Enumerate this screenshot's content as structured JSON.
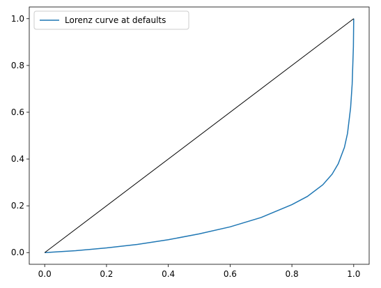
{
  "chart_data": {
    "type": "line",
    "series": [
      {
        "name": "Lorenz curve at defaults",
        "color": "#1f77b4",
        "x": [
          0,
          0.1,
          0.2,
          0.3,
          0.4,
          0.5,
          0.6,
          0.7,
          0.8,
          0.85,
          0.9,
          0.93,
          0.95,
          0.97,
          0.98,
          0.99,
          0.995,
          0.999,
          1.0
        ],
        "values": [
          0,
          0.008,
          0.02,
          0.035,
          0.055,
          0.08,
          0.11,
          0.15,
          0.205,
          0.24,
          0.29,
          0.335,
          0.38,
          0.45,
          0.51,
          0.62,
          0.72,
          0.88,
          1.0
        ]
      },
      {
        "color": "#000000",
        "x": [
          0,
          1.0
        ],
        "values": [
          0,
          1.0
        ]
      }
    ],
    "xlim": [
      -0.05,
      1.05
    ],
    "ylim": [
      -0.05,
      1.05
    ],
    "xticks": [
      {
        "value": 0,
        "label": "0.0"
      },
      0.2,
      0.4,
      0.6,
      0.8,
      {
        "value": 1,
        "label": "1.0"
      }
    ],
    "yticks": [
      {
        "value": 0,
        "label": "0.0"
      },
      0.2,
      0.4,
      0.6,
      0.8,
      {
        "value": 1,
        "label": "1.0"
      }
    ],
    "legend": "upper left"
  }
}
